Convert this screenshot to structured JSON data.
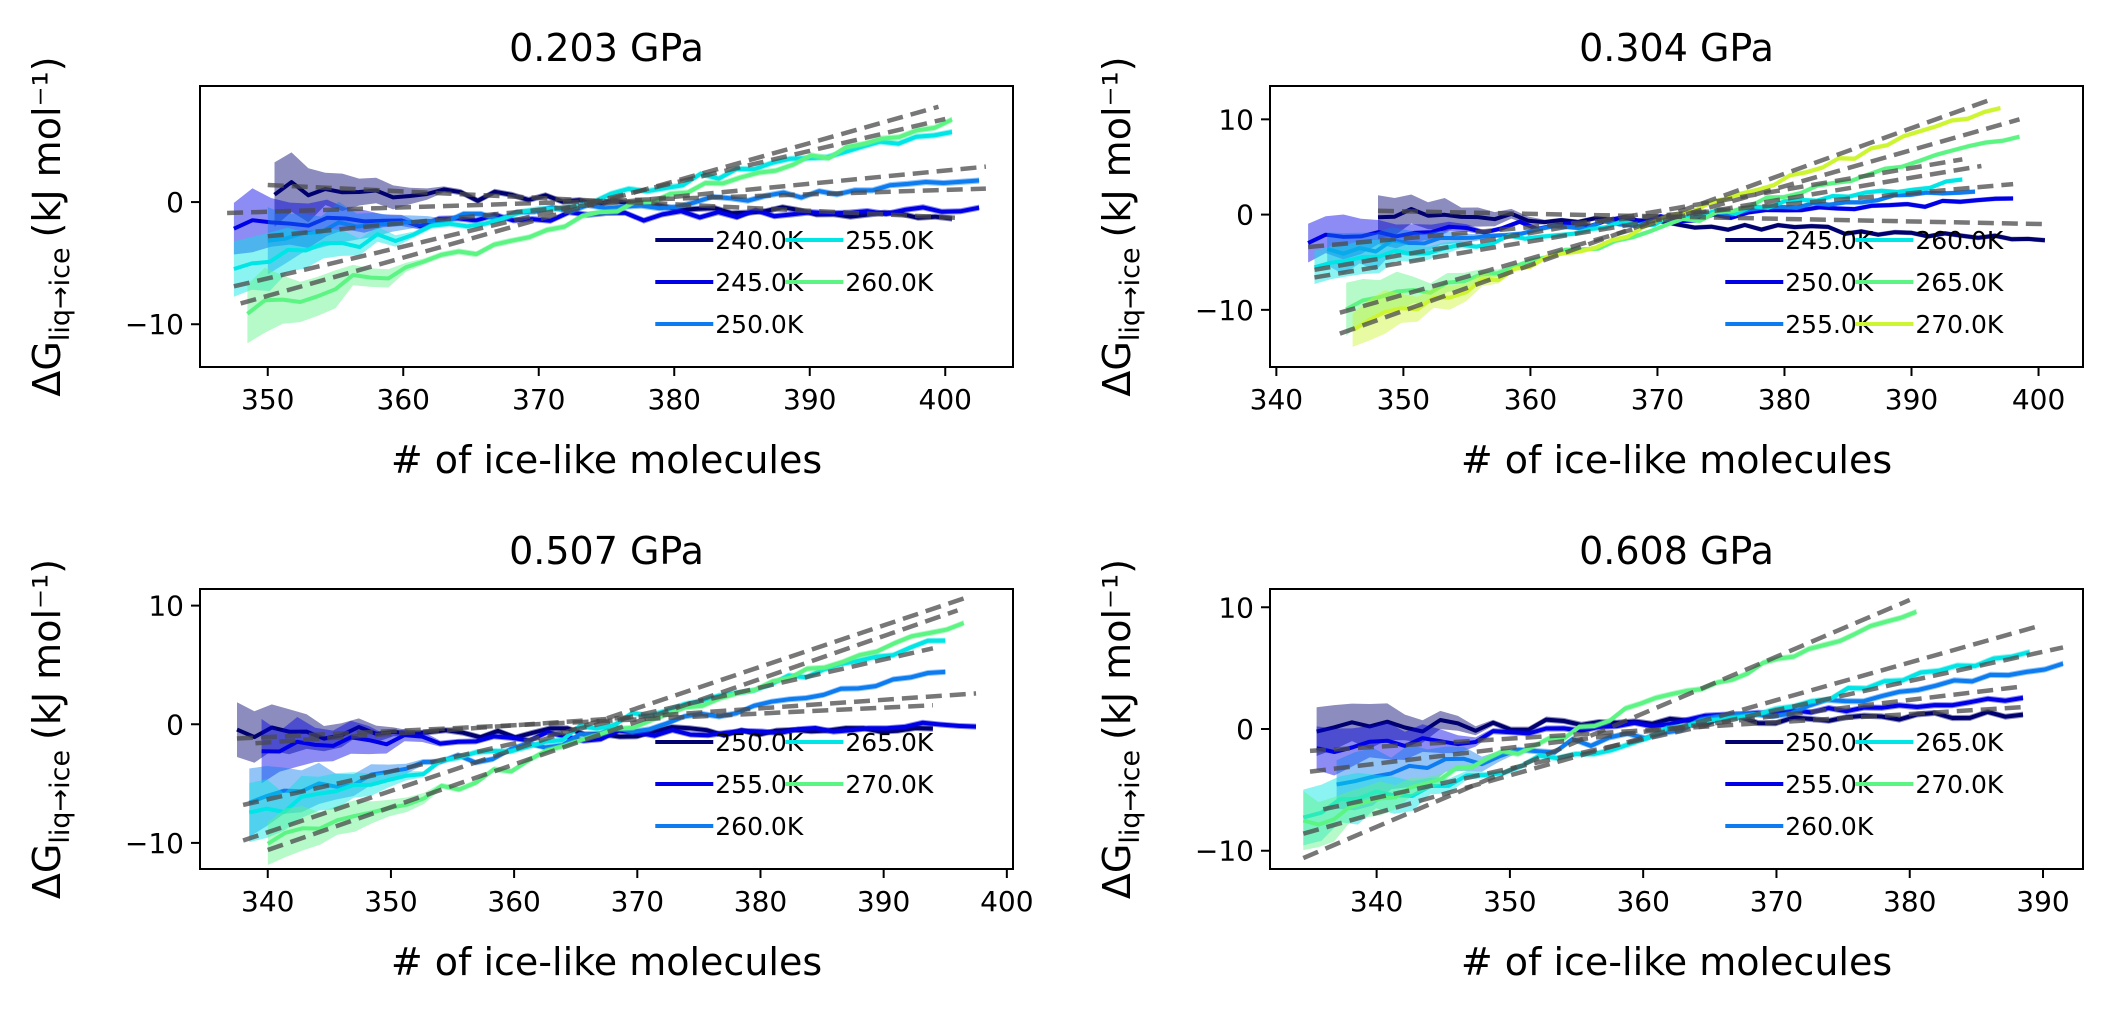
{
  "chart_data": [
    {
      "type": "line",
      "title": "0.203 GPa",
      "xlabel": "# of ice-like molecules",
      "ylabel": {
        "main": "ΔG",
        "sub": "liq→ice",
        "unit": "(kJ mol⁻¹)"
      },
      "xlim": [
        345,
        405
      ],
      "ylim": [
        -13.5,
        9.5
      ],
      "xticks": [
        350,
        360,
        370,
        380,
        390,
        400
      ],
      "yticks": [
        -10,
        0
      ],
      "ytick_labels": [
        "−10",
        "0"
      ],
      "legend": {
        "position": "lower-right",
        "columns": 2
      },
      "series": [
        {
          "name": "240.0K",
          "color": "#00006e",
          "x": [
            350.5,
            400.5
          ],
          "y": [
            1.2,
            -1.4
          ],
          "fit": [
            1.4,
            -1.3
          ],
          "fit_x": [
            350,
            401
          ]
        },
        {
          "name": "245.0K",
          "color": "#0000e6",
          "x": [
            347.5,
            402.5
          ],
          "y": [
            -1.8,
            -0.6
          ],
          "fit": [
            -0.9,
            1.1
          ],
          "fit_x": [
            347,
            403
          ]
        },
        {
          "name": "250.0K",
          "color": "#0d7cf0",
          "x": [
            350.0,
            402.5
          ],
          "y": [
            -2.6,
            1.8
          ],
          "fit": [
            -2.8,
            2.9
          ],
          "fit_x": [
            350,
            403
          ]
        },
        {
          "name": "255.0K",
          "color": "#00e5e5",
          "x": [
            347.5,
            400.5
          ],
          "y": [
            -5.2,
            5.8
          ],
          "fit": [
            -6.9,
            6.8
          ],
          "fit_x": [
            347.5,
            400
          ]
        },
        {
          "name": "260.0K",
          "color": "#5cf584",
          "x": [
            348.5,
            400.5
          ],
          "y": [
            -8.8,
            6.6
          ],
          "fit": [
            -8.3,
            7.8
          ],
          "fit_x": [
            348,
            399.5
          ]
        }
      ]
    },
    {
      "type": "line",
      "title": "0.304 GPa",
      "xlabel": "# of ice-like molecules",
      "ylabel": {
        "main": "ΔG",
        "sub": "liq→ice",
        "unit": "(kJ mol⁻¹)"
      },
      "xlim": [
        339.5,
        403.5
      ],
      "ylim": [
        -16,
        13.5
      ],
      "xticks": [
        340,
        350,
        360,
        370,
        380,
        390,
        400
      ],
      "yticks": [
        -10,
        0,
        10
      ],
      "ytick_labels": [
        "−10",
        "0",
        "10"
      ],
      "legend": {
        "position": "lower-right",
        "columns": 2
      },
      "series": [
        {
          "name": "245.0K",
          "color": "#00006e",
          "x": [
            348.0,
            400.5
          ],
          "y": [
            0.2,
            -2.5
          ],
          "fit": [
            0.4,
            -1.0
          ],
          "fit_x": [
            348,
            400.5
          ]
        },
        {
          "name": "250.0K",
          "color": "#0000e6",
          "x": [
            342.5,
            398.0
          ],
          "y": [
            -2.4,
            1.6
          ],
          "fit": [
            -3.4,
            3.2
          ],
          "fit_x": [
            342.5,
            398
          ]
        },
        {
          "name": "255.0K",
          "color": "#0d7cf0",
          "x": [
            344.0,
            395.0
          ],
          "y": [
            -3.8,
            2.6
          ],
          "fit": [
            -6.6,
            5.1
          ],
          "fit_x": [
            343,
            395.5
          ]
        },
        {
          "name": "260.0K",
          "color": "#00e5e5",
          "x": [
            343.0,
            394.0
          ],
          "y": [
            -5.3,
            3.5
          ],
          "fit": [
            -5.8,
            5.8
          ],
          "fit_x": [
            343,
            394
          ]
        },
        {
          "name": "265.0K",
          "color": "#5cf584",
          "x": [
            345.5,
            398.5
          ],
          "y": [
            -10.0,
            8.4
          ],
          "fit": [
            -10.3,
            10.0
          ],
          "fit_x": [
            345,
            398.5
          ]
        },
        {
          "name": "270.0K",
          "color": "#cdf531",
          "x": [
            346.0,
            397.0
          ],
          "y": [
            -11.8,
            11.4
          ],
          "fit": [
            -12.5,
            12.2
          ],
          "fit_x": [
            345,
            396.5
          ]
        }
      ]
    },
    {
      "type": "line",
      "title": "0.507 GPa",
      "xlabel": "# of ice-like molecules",
      "ylabel": {
        "main": "ΔG",
        "sub": "liq→ice",
        "unit": "(kJ mol⁻¹)"
      },
      "xlim": [
        334.5,
        400.5
      ],
      "ylim": [
        -12.2,
        11.4
      ],
      "xticks": [
        340,
        350,
        360,
        370,
        380,
        390,
        400
      ],
      "yticks": [
        -10,
        0,
        10
      ],
      "ytick_labels": [
        "−10",
        "0",
        "10"
      ],
      "legend": {
        "position": "lower-right",
        "columns": 2
      },
      "series": [
        {
          "name": "250.0K",
          "color": "#00006e",
          "x": [
            337.5,
            394.0
          ],
          "y": [
            -0.8,
            -0.5
          ],
          "fit": [
            -1.2,
            1.6
          ],
          "fit_x": [
            337.5,
            394
          ]
        },
        {
          "name": "255.0K",
          "color": "#0000e6",
          "x": [
            339.5,
            397.5
          ],
          "y": [
            -1.8,
            0.0
          ],
          "fit": [
            -1.6,
            2.6
          ],
          "fit_x": [
            339,
            397.5
          ]
        },
        {
          "name": "260.0K",
          "color": "#0d7cf0",
          "x": [
            338.5,
            395.0
          ],
          "y": [
            -6.2,
            4.4
          ],
          "fit": [
            -6.8,
            6.4
          ],
          "fit_x": [
            338,
            394
          ]
        },
        {
          "name": "265.0K",
          "color": "#00e5e5",
          "x": [
            338.5,
            395.0
          ],
          "y": [
            -7.6,
            7.2
          ],
          "fit": [
            -9.8,
            10.6
          ],
          "fit_x": [
            338,
            396.5
          ]
        },
        {
          "name": "270.0K",
          "color": "#5cf584",
          "x": [
            340.0,
            396.5
          ],
          "y": [
            -10.2,
            8.7
          ],
          "fit": [
            -10.6,
            9.6
          ],
          "fit_x": [
            340,
            396
          ]
        }
      ]
    },
    {
      "type": "line",
      "title": "0.608 GPa",
      "xlabel": "# of ice-like molecules",
      "ylabel": {
        "main": "ΔG",
        "sub": "liq→ice",
        "unit": "(kJ mol⁻¹)"
      },
      "xlim": [
        332,
        393
      ],
      "ylim": [
        -11.5,
        11.5
      ],
      "xticks": [
        340,
        350,
        360,
        370,
        380,
        390
      ],
      "yticks": [
        -10,
        0,
        10
      ],
      "ytick_labels": [
        "−10",
        "0",
        "10"
      ],
      "legend": {
        "position": "lower-right",
        "columns": 2
      },
      "series": [
        {
          "name": "250.0K",
          "color": "#00006e",
          "x": [
            335.5,
            388.5
          ],
          "y": [
            0.0,
            1.2
          ],
          "fit": [
            -1.8,
            1.8
          ],
          "fit_x": [
            335,
            388.5
          ]
        },
        {
          "name": "255.0K",
          "color": "#0000e6",
          "x": [
            335.5,
            388.5
          ],
          "y": [
            -1.6,
            2.6
          ],
          "fit": [
            -3.5,
            3.5
          ],
          "fit_x": [
            335,
            388.5
          ]
        },
        {
          "name": "260.0K",
          "color": "#0d7cf0",
          "x": [
            337.0,
            391.5
          ],
          "y": [
            -4.4,
            5.2
          ],
          "fit": [
            -6.6,
            6.7
          ],
          "fit_x": [
            336,
            391.5
          ]
        },
        {
          "name": "265.0K",
          "color": "#00e5e5",
          "x": [
            334.5,
            389.0
          ],
          "y": [
            -7.0,
            6.4
          ],
          "fit": [
            -8.6,
            8.4
          ],
          "fit_x": [
            334.5,
            389.5
          ]
        },
        {
          "name": "270.0K",
          "color": "#5cf584",
          "x": [
            334.5,
            380.5
          ],
          "y": [
            -7.8,
            9.6
          ],
          "fit": [
            -10.6,
            10.6
          ],
          "fit_x": [
            334.5,
            380
          ]
        }
      ]
    }
  ]
}
